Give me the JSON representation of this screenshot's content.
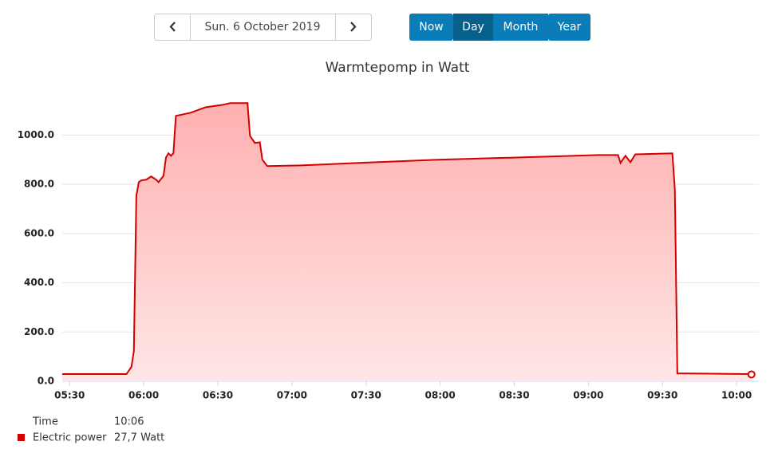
{
  "nav": {
    "date": "Sun. 6 October 2019",
    "buttons": [
      "Now",
      "Day",
      "Month",
      "Year"
    ],
    "active": "Day"
  },
  "chart_data": {
    "type": "area",
    "title": "Warmtepomp in Watt",
    "x": [
      327,
      353,
      355,
      356,
      357,
      358,
      359,
      361,
      363,
      365,
      366,
      368,
      369,
      370,
      371,
      372,
      373,
      379,
      385,
      392,
      395,
      402,
      403,
      405,
      407,
      408,
      410,
      424,
      447,
      479,
      511,
      544,
      552,
      553,
      555,
      557,
      559,
      574,
      575,
      576,
      605,
      606
    ],
    "series": [
      {
        "name": "Electric power",
        "color": "#d40000",
        "values": [
          29,
          29,
          58,
          123,
          754,
          809,
          816,
          819,
          832,
          819,
          809,
          835,
          909,
          926,
          916,
          926,
          1078,
          1091,
          1113,
          1123,
          1130,
          1130,
          997,
          968,
          971,
          900,
          874,
          877,
          887,
          900,
          909,
          919,
          919,
          887,
          916,
          890,
          922,
          926,
          777,
          32,
          29,
          27.7
        ]
      }
    ],
    "xlim": [
      327,
      609
    ],
    "ylim": [
      0,
      1160
    ],
    "xticks": [
      {
        "value": 330,
        "label": "05:30"
      },
      {
        "value": 360,
        "label": "06:00"
      },
      {
        "value": 390,
        "label": "06:30"
      },
      {
        "value": 420,
        "label": "07:00"
      },
      {
        "value": 450,
        "label": "07:30"
      },
      {
        "value": 480,
        "label": "08:00"
      },
      {
        "value": 510,
        "label": "08:30"
      },
      {
        "value": 540,
        "label": "09:00"
      },
      {
        "value": 570,
        "label": "09:30"
      },
      {
        "value": 600,
        "label": "10:00"
      }
    ],
    "yticks": [
      {
        "value": 0,
        "label": "0.0"
      },
      {
        "value": 200,
        "label": "200.0"
      },
      {
        "value": 400,
        "label": "400.0"
      },
      {
        "value": 600,
        "label": "600.0"
      },
      {
        "value": 800,
        "label": "800.0"
      },
      {
        "value": 1000,
        "label": "1000.0"
      }
    ],
    "grid": true
  },
  "tooltip": {
    "time_label": "Time",
    "time": "10:06",
    "value": "27,7 Watt"
  }
}
